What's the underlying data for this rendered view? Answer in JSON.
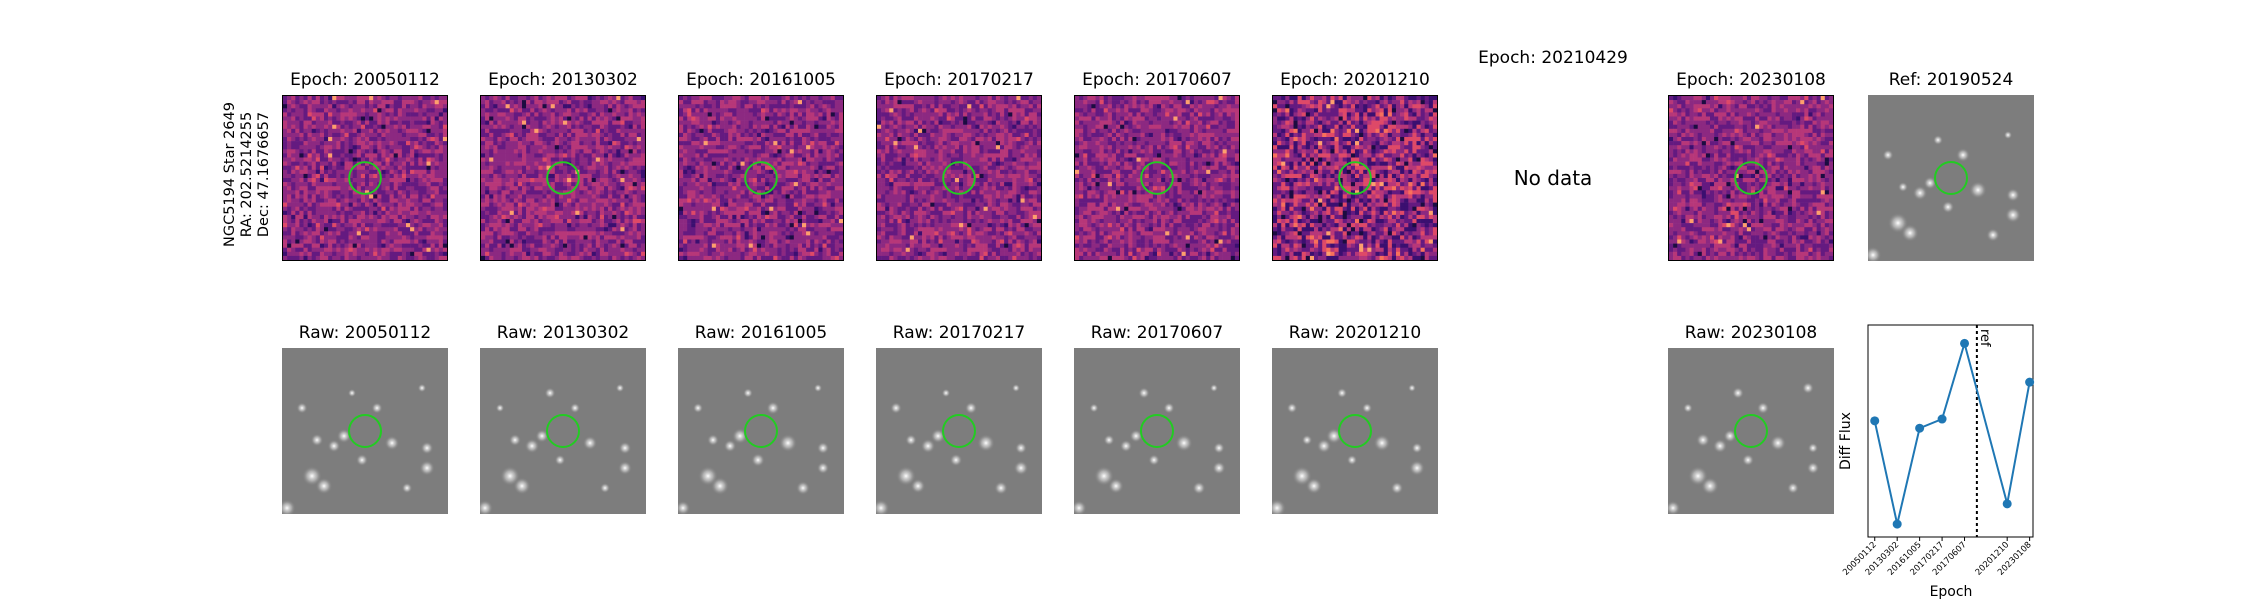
{
  "star_info": {
    "line1": "NGC5194 Star 2649",
    "line2": "RA: 202.5214255",
    "line3": "Dec: 47.1676657"
  },
  "diff_row": {
    "panels": [
      {
        "title": "Epoch: 20050112",
        "has_data": true
      },
      {
        "title": "Epoch: 20130302",
        "has_data": true
      },
      {
        "title": "Epoch: 20161005",
        "has_data": true
      },
      {
        "title": "Epoch: 20170217",
        "has_data": true
      },
      {
        "title": "Epoch: 20170607",
        "has_data": true
      },
      {
        "title": "Epoch: 20201210",
        "has_data": true
      },
      {
        "title": "Epoch: 20210429",
        "has_data": false,
        "empty_text": "No data"
      },
      {
        "title": "Epoch: 20230108",
        "has_data": true
      }
    ],
    "ref_title": "Ref: 20190524"
  },
  "raw_row": {
    "panels": [
      {
        "title": "Raw: 20050112"
      },
      {
        "title": "Raw: 20130302"
      },
      {
        "title": "Raw: 20161005"
      },
      {
        "title": "Raw: 20170217"
      },
      {
        "title": "Raw: 20170607"
      },
      {
        "title": "Raw: 20201210"
      },
      {
        "title": ""
      },
      {
        "title": "Raw: 20230108"
      }
    ]
  },
  "colors": {
    "circle": "#22cc22",
    "line": "#1f77b4",
    "diff_base": "#9a3f8a",
    "gray_base": "#7d7d7d"
  },
  "chart_data": {
    "type": "line",
    "title": "",
    "xlabel": "Epoch",
    "ylabel": "Diff Flux",
    "categories": [
      "20050112",
      "20130302",
      "20161005",
      "20170217",
      "20170607",
      "20201210",
      "20230108"
    ],
    "x_index": [
      0,
      1,
      2,
      3,
      4,
      5.9,
      6.9
    ],
    "values": [
      0.58,
      0.02,
      0.54,
      0.59,
      1.0,
      0.13,
      0.79
    ],
    "ylim": [
      -0.05,
      1.1
    ],
    "xlim": [
      -0.3,
      7.05
    ],
    "reference_line": {
      "x_index": 4.55,
      "label": "ref"
    },
    "y_ticks_shown": false
  }
}
